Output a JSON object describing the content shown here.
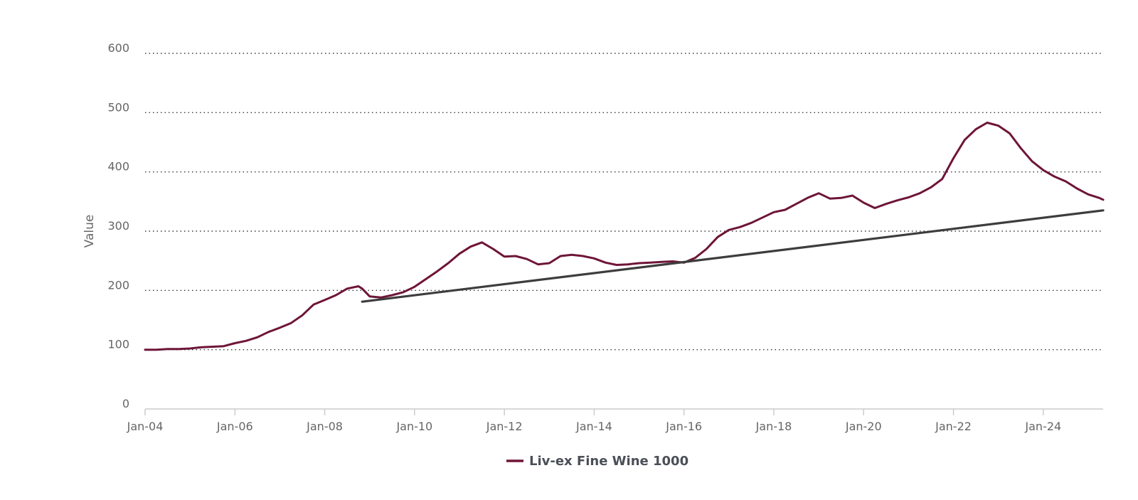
{
  "chart_data": {
    "type": "line",
    "title": "",
    "xlabel": "",
    "ylabel": "Value",
    "ylim": [
      0,
      600
    ],
    "yticks": [
      0,
      100,
      200,
      300,
      400,
      500,
      600
    ],
    "xlim": [
      "2004-01",
      "2025-05"
    ],
    "xticks": [
      {
        "date": "2004-01",
        "label": "Jan-04"
      },
      {
        "date": "2006-01",
        "label": "Jan-06"
      },
      {
        "date": "2008-01",
        "label": "Jan-08"
      },
      {
        "date": "2010-01",
        "label": "Jan-10"
      },
      {
        "date": "2012-01",
        "label": "Jan-12"
      },
      {
        "date": "2014-01",
        "label": "Jan-14"
      },
      {
        "date": "2016-01",
        "label": "Jan-16"
      },
      {
        "date": "2018-01",
        "label": "Jan-18"
      },
      {
        "date": "2020-01",
        "label": "Jan-20"
      },
      {
        "date": "2022-01",
        "label": "Jan-22"
      },
      {
        "date": "2024-01",
        "label": "Jan-24"
      }
    ],
    "grid": true,
    "legend": "bottom-center",
    "series": [
      {
        "name": "Liv-ex Fine Wine 1000",
        "color": "#6e1538",
        "points": [
          [
            "2004-01",
            100
          ],
          [
            "2004-04",
            100
          ],
          [
            "2004-07",
            101
          ],
          [
            "2004-10",
            101
          ],
          [
            "2005-01",
            102
          ],
          [
            "2005-04",
            104
          ],
          [
            "2005-07",
            105
          ],
          [
            "2005-10",
            106
          ],
          [
            "2006-01",
            111
          ],
          [
            "2006-04",
            115
          ],
          [
            "2006-07",
            121
          ],
          [
            "2006-10",
            130
          ],
          [
            "2007-01",
            137
          ],
          [
            "2007-04",
            145
          ],
          [
            "2007-07",
            158
          ],
          [
            "2007-10",
            176
          ],
          [
            "2008-01",
            184
          ],
          [
            "2008-04",
            192
          ],
          [
            "2008-07",
            203
          ],
          [
            "2008-10",
            207
          ],
          [
            "2008-11",
            203
          ],
          [
            "2009-01",
            190
          ],
          [
            "2009-04",
            188
          ],
          [
            "2009-07",
            192
          ],
          [
            "2009-10",
            197
          ],
          [
            "2010-01",
            206
          ],
          [
            "2010-04",
            219
          ],
          [
            "2010-07",
            232
          ],
          [
            "2010-10",
            246
          ],
          [
            "2011-01",
            262
          ],
          [
            "2011-04",
            274
          ],
          [
            "2011-07",
            281
          ],
          [
            "2011-10",
            270
          ],
          [
            "2012-01",
            257
          ],
          [
            "2012-04",
            258
          ],
          [
            "2012-07",
            253
          ],
          [
            "2012-10",
            244
          ],
          [
            "2013-01",
            246
          ],
          [
            "2013-04",
            258
          ],
          [
            "2013-07",
            260
          ],
          [
            "2013-10",
            258
          ],
          [
            "2014-01",
            254
          ],
          [
            "2014-04",
            247
          ],
          [
            "2014-07",
            243
          ],
          [
            "2014-10",
            244
          ],
          [
            "2015-01",
            246
          ],
          [
            "2015-04",
            247
          ],
          [
            "2015-07",
            248
          ],
          [
            "2015-10",
            249
          ],
          [
            "2016-01",
            247
          ],
          [
            "2016-04",
            255
          ],
          [
            "2016-07",
            270
          ],
          [
            "2016-10",
            290
          ],
          [
            "2017-01",
            302
          ],
          [
            "2017-04",
            307
          ],
          [
            "2017-07",
            314
          ],
          [
            "2017-10",
            323
          ],
          [
            "2018-01",
            332
          ],
          [
            "2018-04",
            336
          ],
          [
            "2018-07",
            346
          ],
          [
            "2018-10",
            356
          ],
          [
            "2019-01",
            364
          ],
          [
            "2019-04",
            355
          ],
          [
            "2019-07",
            356
          ],
          [
            "2019-10",
            360
          ],
          [
            "2020-01",
            348
          ],
          [
            "2020-04",
            339
          ],
          [
            "2020-07",
            346
          ],
          [
            "2020-10",
            352
          ],
          [
            "2021-01",
            357
          ],
          [
            "2021-04",
            364
          ],
          [
            "2021-07",
            374
          ],
          [
            "2021-10",
            388
          ],
          [
            "2022-01",
            423
          ],
          [
            "2022-04",
            454
          ],
          [
            "2022-07",
            472
          ],
          [
            "2022-10",
            483
          ],
          [
            "2023-01",
            478
          ],
          [
            "2023-04",
            465
          ],
          [
            "2023-07",
            440
          ],
          [
            "2023-10",
            418
          ],
          [
            "2024-01",
            403
          ],
          [
            "2024-04",
            392
          ],
          [
            "2024-07",
            384
          ],
          [
            "2024-10",
            372
          ],
          [
            "2025-01",
            362
          ],
          [
            "2025-04",
            356
          ],
          [
            "2025-05",
            353
          ]
        ]
      },
      {
        "name": "",
        "color": "#3d3d3d",
        "points": [
          [
            "2008-11",
            181
          ],
          [
            "2025-05",
            335
          ]
        ]
      }
    ]
  }
}
